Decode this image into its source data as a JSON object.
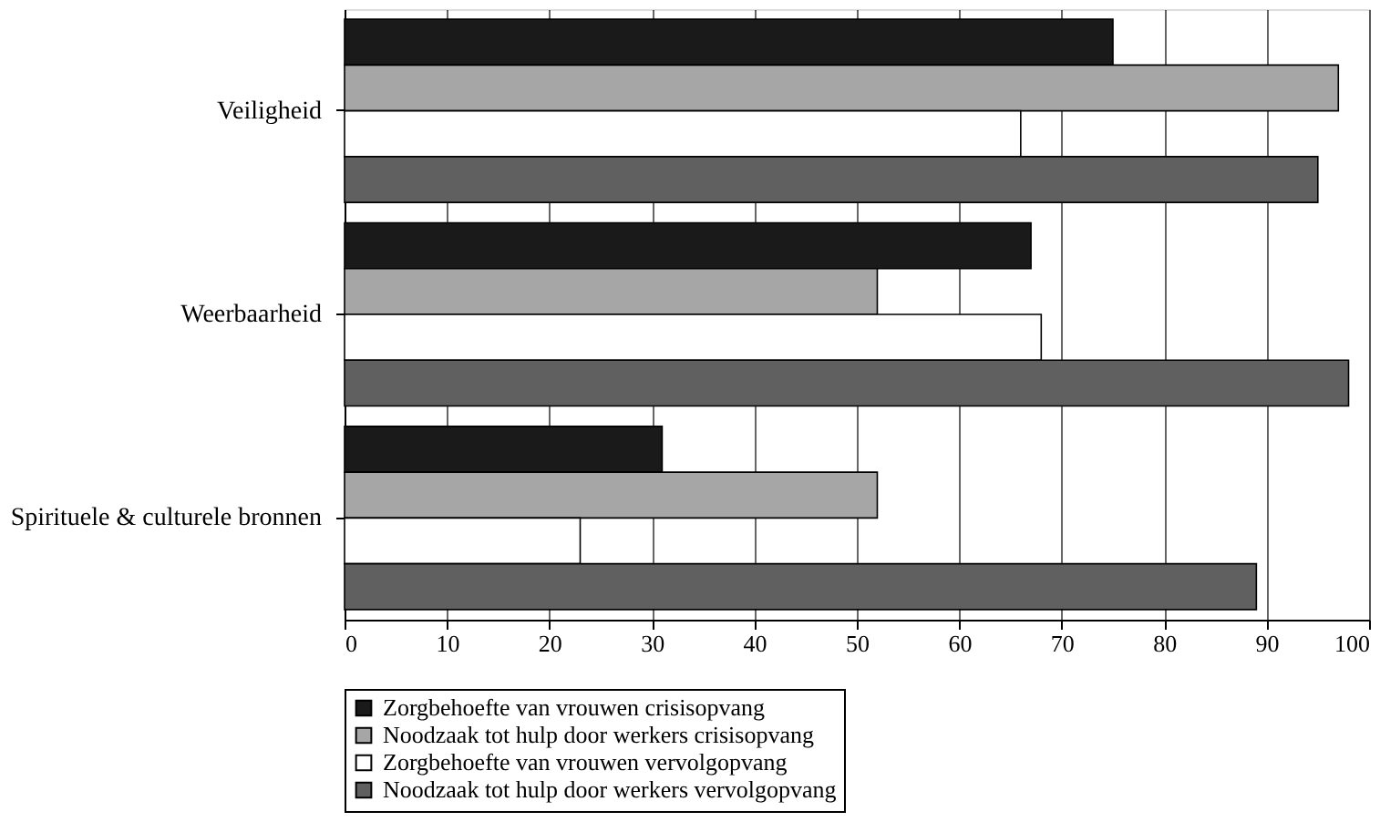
{
  "chart_data": {
    "type": "bar",
    "orientation": "horizontal",
    "categories": [
      "Veiligheid",
      "Weerbaarheid",
      "Spirituele & culturele bronnen"
    ],
    "series": [
      {
        "name": "Zorgbehoefte van vrouwen crisisopvang",
        "color": "#1a1a1a",
        "values": [
          75,
          67,
          31
        ]
      },
      {
        "name": "Noodzaak tot hulp door werkers crisisopvang",
        "color": "#a6a6a6",
        "values": [
          97,
          52,
          52
        ]
      },
      {
        "name": "Zorgbehoefte van vrouwen vervolgopvang",
        "color": "#ffffff",
        "values": [
          66,
          68,
          23
        ]
      },
      {
        "name": "Noodzaak tot hulp door werkers vervolgopvang",
        "color": "#606060",
        "values": [
          95,
          98,
          89
        ]
      }
    ],
    "xlim": [
      0,
      100
    ],
    "xticks": [
      0,
      10,
      20,
      30,
      40,
      50,
      60,
      70,
      80,
      90,
      100
    ],
    "grid": "x",
    "legend": "bottom"
  }
}
